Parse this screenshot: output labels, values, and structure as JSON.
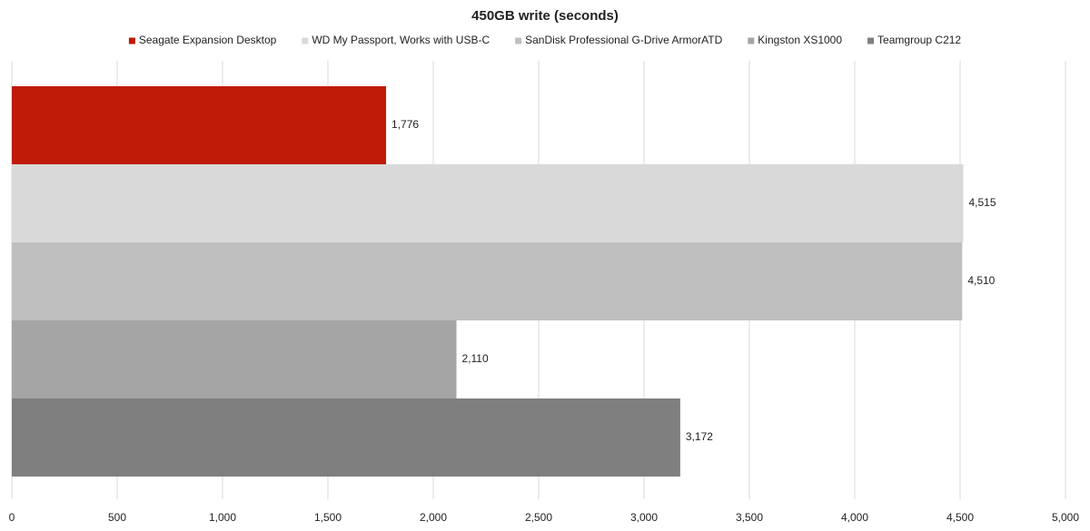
{
  "chart_data": {
    "type": "bar",
    "orientation": "horizontal",
    "title": "450GB write (seconds)",
    "categories": [
      null
    ],
    "series": [
      {
        "name": "Seagate Expansion Desktop",
        "color": "#c01a08",
        "values": [
          1776
        ],
        "value_labels": [
          "1,776"
        ]
      },
      {
        "name": "WD My Passport, Works with USB-C",
        "color": "#d9d9d9",
        "values": [
          4515
        ],
        "value_labels": [
          "4,515"
        ]
      },
      {
        "name": "SanDisk Professional G-Drive ArmorATD",
        "color": "#bfbfbf",
        "values": [
          4510
        ],
        "value_labels": [
          "4,510"
        ]
      },
      {
        "name": "Kingston XS1000",
        "color": "#a5a5a5",
        "values": [
          2110
        ],
        "value_labels": [
          "2,110"
        ]
      },
      {
        "name": "Teamgroup C212",
        "color": "#7f7f7f",
        "values": [
          3172
        ],
        "value_labels": [
          "3,172"
        ]
      }
    ],
    "xlim": [
      0,
      5000
    ],
    "xticks": [
      0,
      500,
      {
        "value": 1000,
        "label": "1,000"
      },
      {
        "value": 1500,
        "label": "1,500"
      },
      {
        "value": 2000,
        "label": "2,000"
      },
      {
        "value": 2500,
        "label": "2,500"
      },
      {
        "value": 3000,
        "label": "3,000"
      },
      {
        "value": 3500,
        "label": "3,500"
      },
      {
        "value": 4000,
        "label": "4,000"
      },
      {
        "value": 4500,
        "label": "4,500"
      },
      {
        "value": 5000,
        "label": "5,000"
      }
    ],
    "grid": true,
    "legend": "top"
  }
}
